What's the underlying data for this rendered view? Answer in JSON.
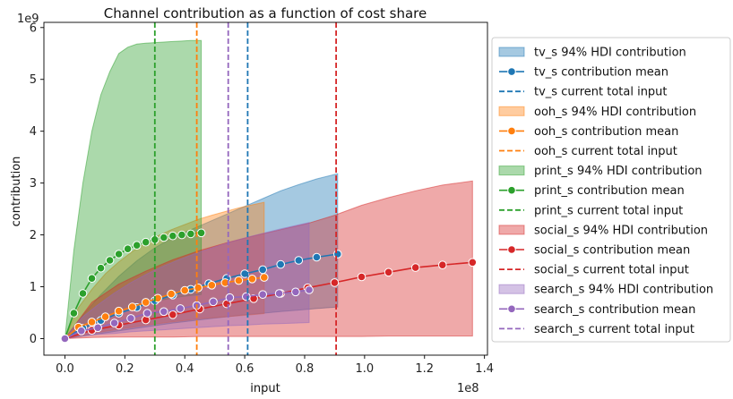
{
  "chart_data": {
    "type": "area",
    "title": "Channel contribution as a function of cost share",
    "xlabel": "input",
    "ylabel": "contribution",
    "x_multiplier": "1e8",
    "y_multiplier": "1e9",
    "xlim": [
      -0.07,
      1.41
    ],
    "ylim": [
      -0.32,
      6.1
    ],
    "xticks": [
      0.0,
      0.2,
      0.4,
      0.6,
      0.8,
      1.0,
      1.2,
      1.4
    ],
    "xtick_labels": [
      "0.0",
      "0.2",
      "0.4",
      "0.6",
      "0.8",
      "1.0",
      "1.2",
      "1.4"
    ],
    "yticks": [
      0,
      1,
      2,
      3,
      4,
      5,
      6
    ],
    "ytick_labels": [
      "0",
      "1",
      "2",
      "3",
      "4",
      "5",
      "6"
    ],
    "grid": false,
    "legend_position": "outside-right",
    "series": [
      {
        "key": "tv_s",
        "color": "#1f77b4",
        "hdi_label": "tv_s 94% HDI contribution",
        "mean_label": "tv_s contribution mean",
        "current_label": "tv_s current total input",
        "current_input": 0.61,
        "x": [
          0.0,
          0.06,
          0.12,
          0.18,
          0.24,
          0.3,
          0.36,
          0.42,
          0.48,
          0.54,
          0.6,
          0.66,
          0.72,
          0.78,
          0.84,
          0.91
        ],
        "mean": [
          0.0,
          0.2,
          0.35,
          0.49,
          0.6,
          0.73,
          0.84,
          0.95,
          1.06,
          1.16,
          1.25,
          1.33,
          1.43,
          1.51,
          1.57,
          1.63
        ],
        "hdi_low": [
          0.0,
          0.05,
          0.1,
          0.15,
          0.2,
          0.25,
          0.3,
          0.34,
          0.38,
          0.42,
          0.46,
          0.49,
          0.52,
          0.55,
          0.58,
          0.61
        ],
        "hdi_high": [
          0.0,
          0.45,
          0.85,
          1.2,
          1.5,
          1.75,
          1.95,
          2.1,
          2.25,
          2.4,
          2.55,
          2.7,
          2.85,
          2.97,
          3.08,
          3.18
        ]
      },
      {
        "key": "ooh_s",
        "color": "#ff7f0e",
        "hdi_label": "ooh_s 94% HDI contribution",
        "mean_label": "ooh_s contribution mean",
        "current_label": "ooh_s current total input",
        "current_input": 0.44,
        "x": [
          0.0,
          0.045,
          0.09,
          0.135,
          0.18,
          0.225,
          0.27,
          0.31,
          0.355,
          0.4,
          0.445,
          0.49,
          0.535,
          0.58,
          0.625,
          0.665
        ],
        "mean": [
          0.0,
          0.22,
          0.32,
          0.42,
          0.53,
          0.61,
          0.7,
          0.78,
          0.86,
          0.93,
          0.98,
          1.03,
          1.08,
          1.12,
          1.15,
          1.18
        ],
        "hdi_low": [
          0.0,
          0.05,
          0.1,
          0.14,
          0.18,
          0.22,
          0.26,
          0.29,
          0.32,
          0.35,
          0.38,
          0.4,
          0.42,
          0.44,
          0.46,
          0.48
        ],
        "hdi_high": [
          0.0,
          0.6,
          0.95,
          1.25,
          1.48,
          1.68,
          1.85,
          1.98,
          2.1,
          2.2,
          2.3,
          2.38,
          2.45,
          2.52,
          2.58,
          2.63
        ]
      },
      {
        "key": "print_s",
        "color": "#2ca02c",
        "hdi_label": "print_s 94% HDI contribution",
        "mean_label": "print_s contribution mean",
        "current_label": "print_s current total input",
        "current_input": 0.3,
        "x": [
          0.0,
          0.03,
          0.06,
          0.09,
          0.12,
          0.15,
          0.18,
          0.21,
          0.24,
          0.27,
          0.3,
          0.33,
          0.36,
          0.39,
          0.42,
          0.455
        ],
        "mean": [
          0.0,
          0.49,
          0.87,
          1.16,
          1.36,
          1.51,
          1.63,
          1.73,
          1.8,
          1.86,
          1.91,
          1.95,
          1.98,
          2.0,
          2.02,
          2.04
        ],
        "hdi_low": [
          0.0,
          0.1,
          0.2,
          0.3,
          0.38,
          0.45,
          0.52,
          0.58,
          0.63,
          0.68,
          0.72,
          0.75,
          0.78,
          0.81,
          0.83,
          0.85
        ],
        "hdi_high": [
          0.0,
          1.7,
          3.0,
          4.0,
          4.7,
          5.15,
          5.5,
          5.62,
          5.68,
          5.7,
          5.71,
          5.72,
          5.73,
          5.74,
          5.75,
          5.75
        ]
      },
      {
        "key": "social_s",
        "color": "#d62728",
        "hdi_label": "social_s 94% HDI contribution",
        "mean_label": "social_s contribution mean",
        "current_label": "social_s current total input",
        "current_input": 0.905,
        "x": [
          0.0,
          0.09,
          0.18,
          0.27,
          0.36,
          0.45,
          0.54,
          0.63,
          0.72,
          0.81,
          0.9,
          0.99,
          1.08,
          1.17,
          1.26,
          1.36
        ],
        "mean": [
          0.0,
          0.16,
          0.26,
          0.36,
          0.46,
          0.57,
          0.67,
          0.77,
          0.87,
          0.98,
          1.08,
          1.19,
          1.28,
          1.37,
          1.42,
          1.47
        ],
        "hdi_low": [
          0.0,
          0.02,
          0.03,
          0.03,
          0.03,
          0.04,
          0.04,
          0.04,
          0.04,
          0.04,
          0.04,
          0.04,
          0.05,
          0.05,
          0.05,
          0.05
        ],
        "hdi_high": [
          0.0,
          0.7,
          1.05,
          1.3,
          1.52,
          1.7,
          1.85,
          1.98,
          2.1,
          2.22,
          2.38,
          2.57,
          2.72,
          2.85,
          2.96,
          3.04
        ]
      },
      {
        "key": "search_s",
        "color": "#9467bd",
        "hdi_label": "search_s 94% HDI contribution",
        "mean_label": "search_s contribution mean",
        "current_label": "search_s current total input",
        "current_input": 0.545,
        "x": [
          0.0,
          0.055,
          0.11,
          0.165,
          0.22,
          0.275,
          0.33,
          0.385,
          0.44,
          0.495,
          0.55,
          0.605,
          0.66,
          0.715,
          0.77,
          0.815
        ],
        "mean": [
          0.0,
          0.15,
          0.21,
          0.3,
          0.39,
          0.49,
          0.52,
          0.58,
          0.64,
          0.71,
          0.79,
          0.81,
          0.85,
          0.87,
          0.9,
          0.94
        ],
        "hdi_low": [
          0.0,
          0.05,
          0.08,
          0.1,
          0.13,
          0.15,
          0.17,
          0.19,
          0.21,
          0.23,
          0.25,
          0.26,
          0.28,
          0.29,
          0.3,
          0.31
        ],
        "hdi_high": [
          0.0,
          0.4,
          0.65,
          0.88,
          1.08,
          1.25,
          1.4,
          1.53,
          1.65,
          1.76,
          1.86,
          1.95,
          2.03,
          2.11,
          2.18,
          2.24
        ]
      }
    ]
  }
}
